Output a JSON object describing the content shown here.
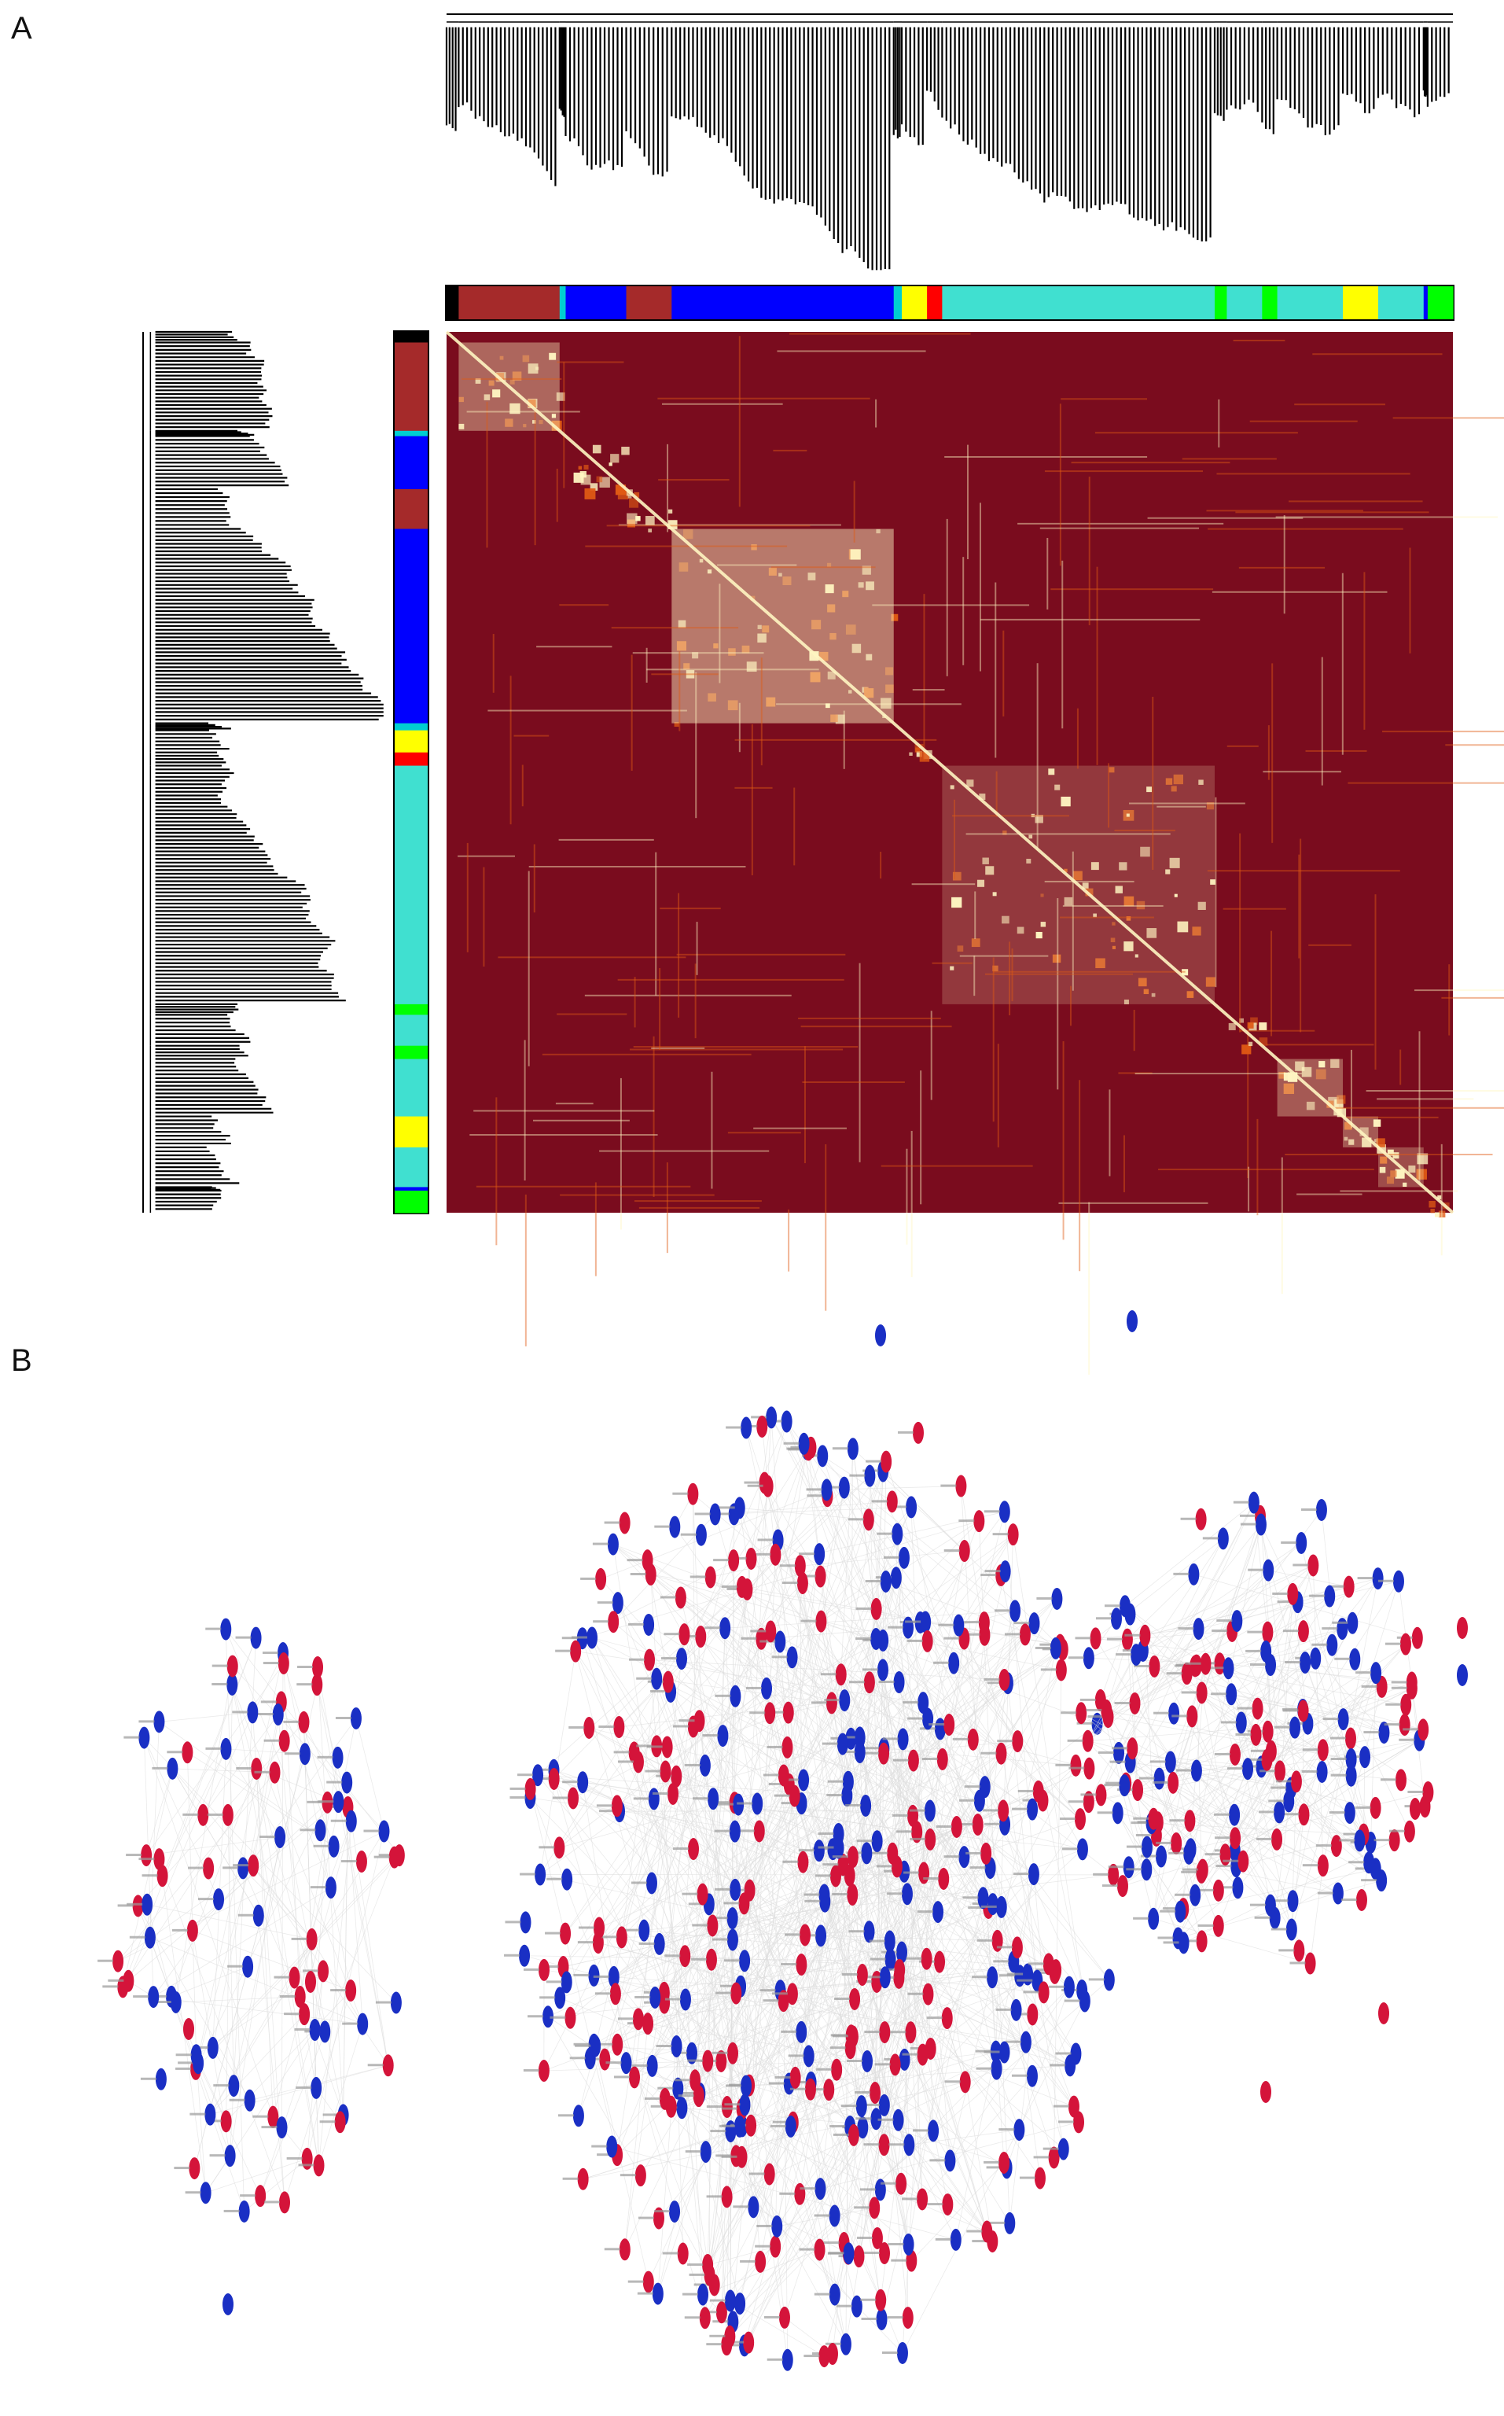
{
  "panels": {
    "a": {
      "label": "A",
      "module_colors": [
        "#000000",
        "#a52a2a",
        "#00ced1",
        "#0000ff",
        "#a52a2a",
        "#0000ff",
        "#00ced1",
        "#ffff00",
        "#ff0000",
        "#40e0d0",
        "#00ff00",
        "#40e0d0",
        "#00ff00",
        "#40e0d0",
        "#ffff00",
        "#40e0d0",
        "#0000ff",
        "#00ff00"
      ],
      "module_sizes": [
        0.012,
        0.1,
        0.006,
        0.06,
        0.045,
        0.22,
        0.008,
        0.025,
        0.015,
        0.27,
        0.012,
        0.035,
        0.015,
        0.065,
        0.035,
        0.045,
        0.004,
        0.025
      ],
      "heatmap_colors": {
        "low": "#7a0c1e",
        "mid": "#e05a14",
        "high": "#fff6c2"
      }
    },
    "b": {
      "label": "B",
      "node_colors": {
        "up": "#d4143a",
        "down": "#1a2fc4"
      },
      "edge_color": "#dddddd"
    }
  }
}
